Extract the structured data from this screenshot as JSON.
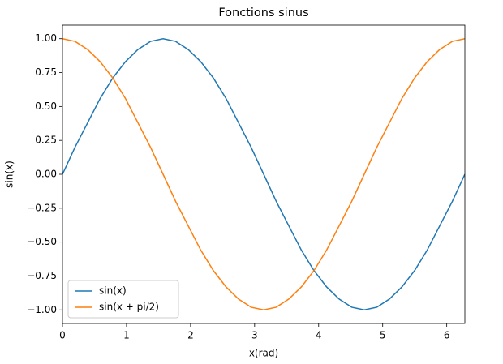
{
  "chart_data": {
    "type": "line",
    "title": "Fonctions sinus",
    "x_label": "x(rad)",
    "y_label": "sin(x)",
    "x": [
      0.0,
      0.196,
      0.393,
      0.589,
      0.785,
      0.982,
      1.178,
      1.374,
      1.571,
      1.767,
      1.963,
      2.16,
      2.356,
      2.553,
      2.749,
      2.945,
      3.142,
      3.338,
      3.534,
      3.731,
      3.927,
      4.123,
      4.32,
      4.516,
      4.712,
      4.909,
      5.105,
      5.301,
      5.498,
      5.694,
      5.89,
      6.087,
      6.283
    ],
    "series": [
      {
        "name": "sin(x)",
        "color": "#1f77b4",
        "values": [
          0.0,
          0.2,
          0.38,
          0.56,
          0.71,
          0.83,
          0.92,
          0.98,
          1.0,
          0.98,
          0.92,
          0.83,
          0.71,
          0.56,
          0.38,
          0.2,
          0.0,
          -0.2,
          -0.38,
          -0.56,
          -0.71,
          -0.83,
          -0.92,
          -0.98,
          -1.0,
          -0.98,
          -0.92,
          -0.83,
          -0.71,
          -0.56,
          -0.38,
          -0.2,
          0.0
        ]
      },
      {
        "name": "sin(x + pi/2)",
        "color": "#ff7f0e",
        "values": [
          1.0,
          0.98,
          0.92,
          0.83,
          0.71,
          0.56,
          0.38,
          0.2,
          0.0,
          -0.2,
          -0.38,
          -0.56,
          -0.71,
          -0.83,
          -0.92,
          -0.98,
          -1.0,
          -0.98,
          -0.92,
          -0.83,
          -0.71,
          -0.56,
          -0.38,
          -0.2,
          0.0,
          0.2,
          0.38,
          0.56,
          0.71,
          0.83,
          0.92,
          0.98,
          1.0
        ]
      }
    ],
    "xlim": [
      0,
      6.283
    ],
    "xticks": [
      0,
      1,
      2,
      3,
      4,
      5,
      6
    ],
    "ylim": [
      -1.1,
      1.1
    ],
    "yticks": [
      {
        "value": -1,
        "label": "−1.00"
      },
      {
        "value": -0.75,
        "label": "−0.75"
      },
      {
        "value": -0.5,
        "label": "−0.50"
      },
      {
        "value": -0.25,
        "label": "−0.25"
      },
      {
        "value": 0,
        "label": "0.00"
      },
      {
        "value": 0.25,
        "label": "0.25"
      },
      {
        "value": 0.5,
        "label": "0.50"
      },
      {
        "value": 0.75,
        "label": "0.75"
      },
      {
        "value": 1,
        "label": "1.00"
      }
    ],
    "legend": "lower left",
    "grid": false
  }
}
